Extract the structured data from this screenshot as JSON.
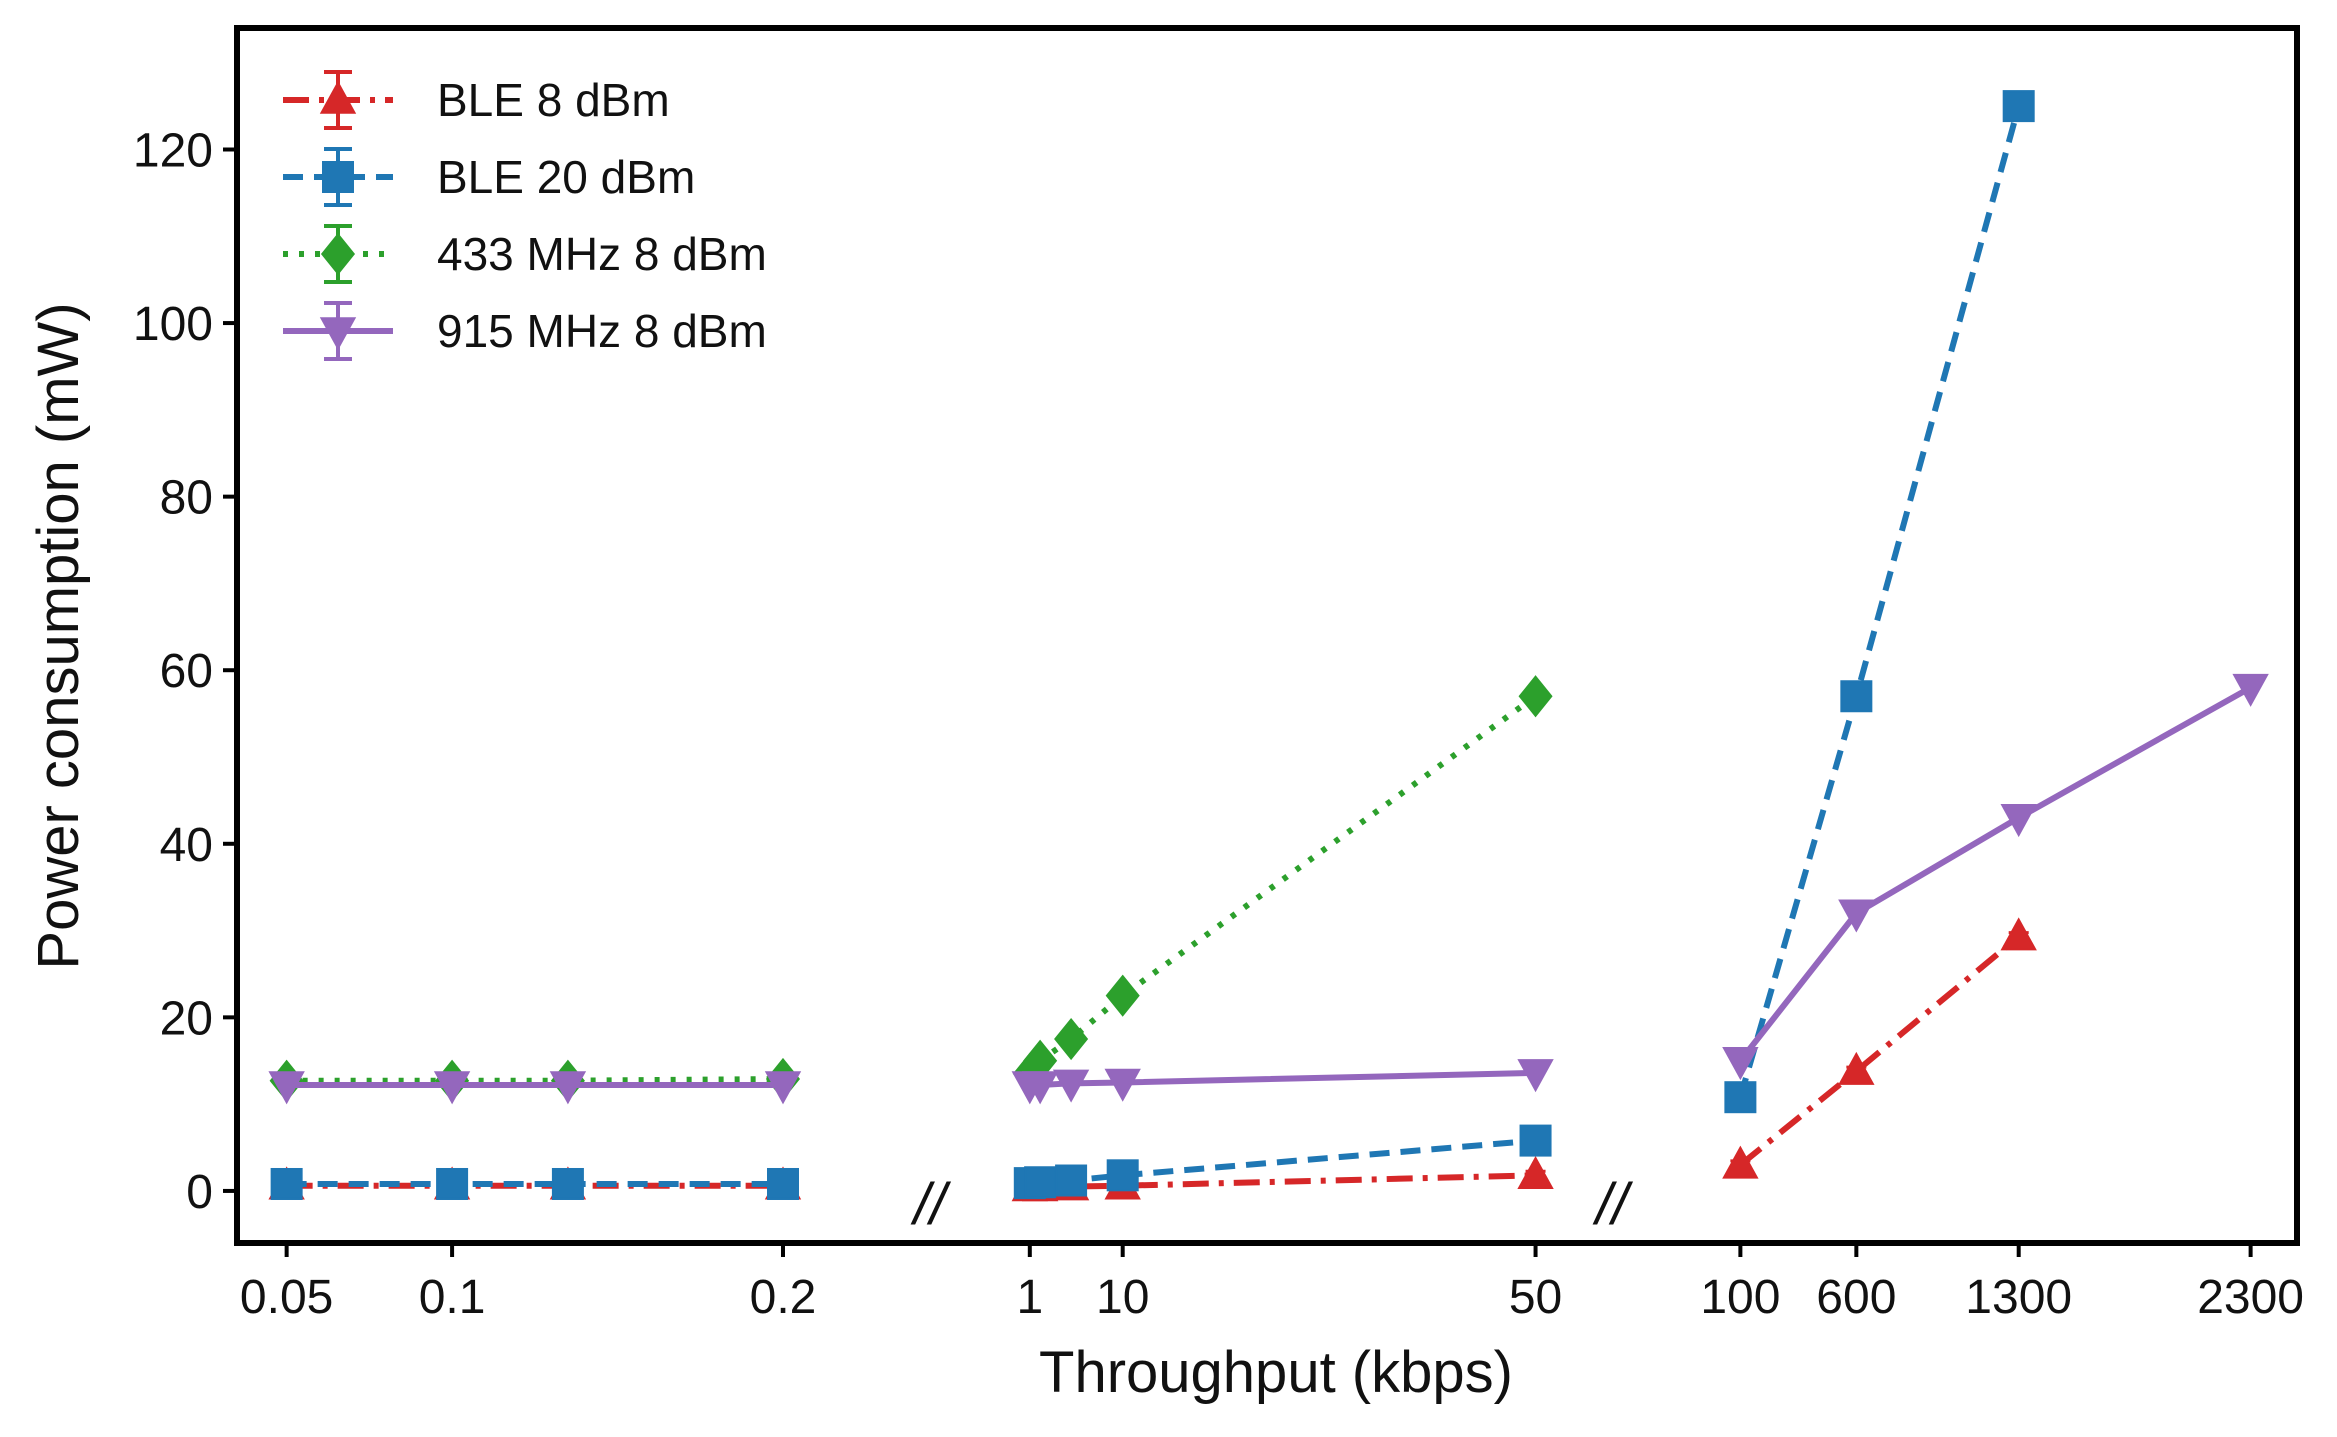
{
  "chart_data": {
    "type": "line",
    "title": "",
    "xlabel": "Throughput (kbps)",
    "ylabel": "Power consumption (mW)",
    "ylim": [
      -6,
      134
    ],
    "yticks": [
      0,
      20,
      40,
      60,
      80,
      100,
      120
    ],
    "grid": false,
    "legend_position": "top-left",
    "break_label": "//",
    "segments": [
      {
        "name": "low",
        "xlim": [
          0.035,
          0.2275
        ],
        "ticks": [
          0.05,
          0.1,
          0.2
        ],
        "tick_labels": [
          "0.05",
          "0.1",
          "0.2"
        ]
      },
      {
        "name": "mid",
        "xlim": [
          -1.5,
          54.5
        ],
        "ticks": [
          1,
          10,
          50
        ],
        "tick_labels": [
          "1",
          "10",
          "50"
        ]
      },
      {
        "name": "high",
        "xlim": [
          -100,
          2500
        ],
        "ticks": [
          100,
          600,
          1300,
          2300
        ],
        "tick_labels": [
          "100",
          "600",
          "1300",
          "2300"
        ]
      }
    ],
    "series": [
      {
        "name": "BLE 8 dBm",
        "color": "#d62728",
        "marker": "triangle-up",
        "linestyle": "dash-dot",
        "segments": [
          [
            [
              0.05,
              0.6
            ],
            [
              0.1,
              0.6
            ],
            [
              0.135,
              0.6
            ],
            [
              0.2,
              0.6
            ]
          ],
          [
            [
              1,
              0.4
            ],
            [
              2,
              0.4
            ],
            [
              5,
              0.5
            ],
            [
              10,
              0.6
            ],
            [
              50,
              1.8
            ]
          ],
          [
            [
              100,
              3.0
            ],
            [
              600,
              13.8
            ],
            [
              1300,
              29.3
            ]
          ]
        ]
      },
      {
        "name": "BLE 20 dBm",
        "color": "#1f77b4",
        "marker": "square",
        "linestyle": "dashed",
        "segments": [
          [
            [
              0.05,
              0.8
            ],
            [
              0.1,
              0.8
            ],
            [
              0.135,
              0.8
            ],
            [
              0.2,
              0.8
            ]
          ],
          [
            [
              1,
              0.9
            ],
            [
              2,
              1.0
            ],
            [
              5,
              1.2
            ],
            [
              10,
              1.8
            ],
            [
              50,
              5.8
            ]
          ],
          [
            [
              100,
              10.8
            ],
            [
              600,
              57.0
            ],
            [
              1300,
              125.0
            ]
          ]
        ]
      },
      {
        "name": "433 MHz 8 dBm",
        "color": "#2ca02c",
        "marker": "diamond",
        "linestyle": "dotted",
        "segments": [
          [
            [
              0.05,
              12.7
            ],
            [
              0.1,
              12.7
            ],
            [
              0.135,
              12.7
            ],
            [
              0.2,
              12.9
            ]
          ],
          [
            [
              1,
              13.5
            ],
            [
              2,
              15.0
            ],
            [
              5,
              17.5
            ],
            [
              10,
              22.5
            ],
            [
              50,
              57.0
            ]
          ],
          []
        ]
      },
      {
        "name": "915 MHz 8 dBm",
        "color": "#9467bd",
        "marker": "triangle-down",
        "linestyle": "solid",
        "segments": [
          [
            [
              0.05,
              12.2
            ],
            [
              0.1,
              12.2
            ],
            [
              0.135,
              12.2
            ],
            [
              0.2,
              12.2
            ]
          ],
          [
            [
              1,
              12.2
            ],
            [
              2,
              12.2
            ],
            [
              5,
              12.4
            ],
            [
              10,
              12.5
            ],
            [
              50,
              13.6
            ]
          ],
          [
            [
              100,
              15.0
            ],
            [
              600,
              32.0
            ],
            [
              1300,
              43.0
            ],
            [
              2300,
              58.0
            ]
          ]
        ]
      }
    ]
  }
}
